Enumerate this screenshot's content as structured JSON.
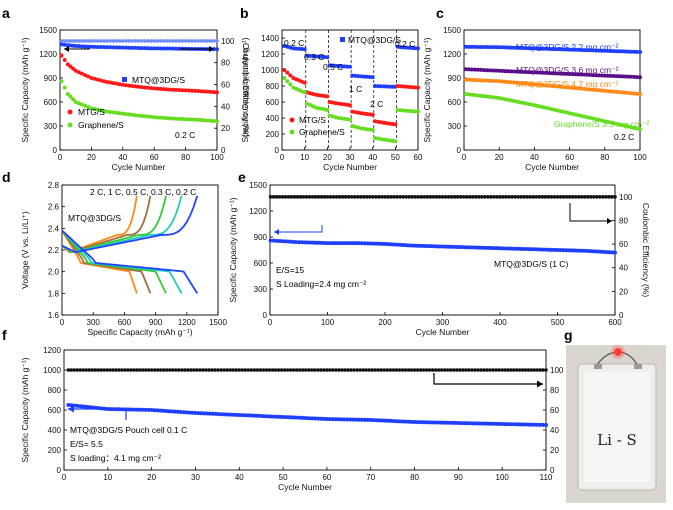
{
  "figure": {
    "panels": [
      {
        "id": "a",
        "label": "a"
      },
      {
        "id": "b",
        "label": "b"
      },
      {
        "id": "c",
        "label": "c"
      },
      {
        "id": "d",
        "label": "d"
      },
      {
        "id": "e",
        "label": "e"
      },
      {
        "id": "f",
        "label": "f"
      },
      {
        "id": "g",
        "label": "g"
      }
    ]
  },
  "photo": {
    "label": "g",
    "handwriting": "Li - S"
  },
  "chart_data": [
    {
      "panel": "a",
      "type": "scatter",
      "xlabel": "Cycle Number",
      "ylabel": "Specific Capacity (mAh g⁻¹)",
      "y2label": "Coulombic Efficiency (%)",
      "xlim": [
        0,
        100
      ],
      "ylim": [
        0,
        1500
      ],
      "y2lim": [
        0,
        110
      ],
      "xticks": [
        "0",
        "20",
        "40",
        "60",
        "80",
        "100"
      ],
      "yticks": [
        "0",
        "300",
        "600",
        "900",
        "1200",
        "1500"
      ],
      "y2ticks": [
        "0",
        "20",
        "40",
        "60",
        "80",
        "100"
      ],
      "annotations": [
        "0.2 C"
      ],
      "legend": [
        "MTQ@3DG/S",
        "MTG/S",
        "Graphene/S"
      ],
      "series": [
        {
          "name": "MTQ@3DG/S",
          "color": "#1f3fff",
          "x": [
            1,
            5,
            10,
            20,
            30,
            40,
            50,
            60,
            70,
            80,
            90,
            100
          ],
          "y": [
            1320,
            1310,
            1300,
            1290,
            1285,
            1280,
            1275,
            1270,
            1268,
            1265,
            1262,
            1260
          ]
        },
        {
          "name": "MTG/S",
          "color": "#ff1a1a",
          "x": [
            1,
            5,
            10,
            20,
            30,
            40,
            50,
            60,
            70,
            80,
            90,
            100
          ],
          "y": [
            1180,
            1070,
            990,
            900,
            850,
            815,
            790,
            770,
            755,
            745,
            735,
            720
          ]
        },
        {
          "name": "Graphene/S",
          "color": "#66dd22",
          "x": [
            1,
            5,
            10,
            20,
            30,
            40,
            50,
            60,
            70,
            80,
            90,
            100
          ],
          "y": [
            860,
            700,
            600,
            520,
            480,
            455,
            430,
            410,
            395,
            385,
            375,
            360
          ]
        },
        {
          "name": "",
          "color": "#6f8cff",
          "axis": "y2",
          "x": [
            1,
            20,
            40,
            60,
            80,
            100
          ],
          "y": [
            100,
            100,
            100,
            100,
            100,
            100
          ]
        }
      ]
    },
    {
      "panel": "b",
      "type": "scatter",
      "xlabel": "Cycle Number",
      "ylabel": "Specific Capacity (mAh g⁻¹)",
      "xlim": [
        0,
        60
      ],
      "ylim": [
        0,
        1500
      ],
      "xticks": [
        "0",
        "10",
        "20",
        "30",
        "40",
        "50",
        "60"
      ],
      "yticks": [
        "0",
        "200",
        "400",
        "600",
        "800",
        "1000",
        "1200",
        "1400"
      ],
      "rate_labels": [
        "0.2 C",
        "0.3 C",
        "0.5 C",
        "1 C",
        "2 C",
        "0.2 C"
      ],
      "legend": [
        "MTQ@3DG/S",
        "MTG/S",
        "Graphene/S"
      ],
      "series": [
        {
          "name": "MTQ@3DG/S",
          "color": "#1f3fff",
          "x": [
            1,
            5,
            10,
            11,
            15,
            20,
            21,
            25,
            30,
            31,
            35,
            40,
            41,
            45,
            50,
            51,
            55,
            60
          ],
          "y": [
            1300,
            1270,
            1260,
            1180,
            1170,
            1160,
            1060,
            1050,
            1040,
            930,
            920,
            910,
            800,
            795,
            790,
            1290,
            1280,
            1270
          ]
        },
        {
          "name": "MTG/S",
          "color": "#ff1a1a",
          "x": [
            1,
            5,
            10,
            11,
            15,
            20,
            21,
            25,
            30,
            31,
            35,
            40,
            41,
            45,
            50,
            51,
            55,
            60
          ],
          "y": [
            1000,
            900,
            840,
            720,
            690,
            670,
            600,
            580,
            560,
            480,
            460,
            440,
            360,
            340,
            320,
            800,
            790,
            780
          ]
        },
        {
          "name": "Graphene/S",
          "color": "#66dd22",
          "x": [
            1,
            5,
            10,
            11,
            15,
            20,
            21,
            25,
            30,
            31,
            35,
            40,
            41,
            45,
            50,
            51,
            55,
            60
          ],
          "y": [
            900,
            780,
            720,
            580,
            530,
            500,
            430,
            400,
            380,
            300,
            270,
            250,
            150,
            130,
            110,
            500,
            490,
            480
          ]
        }
      ]
    },
    {
      "panel": "c",
      "type": "scatter",
      "xlabel": "Cycle Number",
      "ylabel": "Specific Capacity (mAh g⁻¹)",
      "xlim": [
        0,
        100
      ],
      "ylim": [
        0,
        1500
      ],
      "xticks": [
        "0",
        "20",
        "40",
        "60",
        "80",
        "100"
      ],
      "yticks": [
        "0",
        "300",
        "600",
        "900",
        "1200",
        "1500"
      ],
      "annotations": [
        "0.2 C"
      ],
      "series": [
        {
          "name": "MTQ@3DG/S  2.2 mg cm⁻²",
          "color": "#1f3fff",
          "x": [
            1,
            20,
            40,
            60,
            80,
            100
          ],
          "y": [
            1290,
            1285,
            1270,
            1255,
            1240,
            1225
          ]
        },
        {
          "name": "MTQ@3DG/S  3.6 mg cm⁻²",
          "color": "#5a0f8a",
          "x": [
            1,
            20,
            40,
            60,
            80,
            100
          ],
          "y": [
            1010,
            990,
            970,
            950,
            930,
            910
          ]
        },
        {
          "name": "MTQ@3DG/S  4.7 mg cm⁻²",
          "color": "#ff8a1a",
          "x": [
            1,
            20,
            40,
            60,
            80,
            100
          ],
          "y": [
            880,
            860,
            820,
            780,
            740,
            700
          ]
        },
        {
          "name": "Graphene/S  3.5 mg cm⁻²",
          "color": "#66dd22",
          "x": [
            1,
            20,
            40,
            60,
            80,
            100
          ],
          "y": [
            700,
            650,
            560,
            460,
            360,
            260
          ]
        }
      ]
    },
    {
      "panel": "d",
      "type": "line",
      "xlabel": "Specific Capacity (mAh g⁻¹)",
      "ylabel": "Voltage (V vs. Li/Li⁺)",
      "xlim": [
        0,
        1500
      ],
      "ylim": [
        1.6,
        2.8
      ],
      "xticks": [
        "0",
        "300",
        "600",
        "900",
        "1200",
        "1500"
      ],
      "yticks": [
        "1.6",
        "1.8",
        "2.0",
        "2.2",
        "2.4",
        "2.6",
        "2.8"
      ],
      "rate_labels": "2 C,  1 C,  0.5 C,  0.3 C,  0.2 C",
      "annotations": [
        "MTQ@3DG/S"
      ],
      "series": [
        {
          "name": "2 C",
          "color": "#ff8a1a",
          "capacity": 720
        },
        {
          "name": "1 C",
          "color": "#a07040",
          "capacity": 850
        },
        {
          "name": "0.5 C",
          "color": "#33cc33",
          "capacity": 1000
        },
        {
          "name": "0.3 C",
          "color": "#22ccbb",
          "capacity": 1150
        },
        {
          "name": "0.2 C",
          "color": "#2244ff",
          "capacity": 1300
        }
      ]
    },
    {
      "panel": "e",
      "type": "scatter",
      "xlabel": "Cycle Number",
      "ylabel": "Specific Capacity (mAh g⁻¹)",
      "y2label": "Coulombic Efficiency (%)",
      "xlim": [
        0,
        600
      ],
      "ylim": [
        0,
        1500
      ],
      "y2lim": [
        0,
        110
      ],
      "xticks": [
        "0",
        "100",
        "200",
        "300",
        "400",
        "500",
        "600"
      ],
      "yticks": [
        "0",
        "300",
        "600",
        "900",
        "1200",
        "1500"
      ],
      "y2ticks": [
        "0",
        "20",
        "40",
        "60",
        "80",
        "100"
      ],
      "annotations": [
        "E/S=15",
        "S Loading=2.4 mg cm⁻²",
        "MTQ@3DG/S (1 C)"
      ],
      "series": [
        {
          "name": "MTQ@3DG/S (1 C)",
          "color": "#1f3fff",
          "x": [
            1,
            50,
            100,
            150,
            200,
            250,
            300,
            350,
            400,
            450,
            500,
            550,
            600
          ],
          "y": [
            860,
            840,
            830,
            830,
            820,
            800,
            790,
            780,
            770,
            760,
            750,
            740,
            720
          ]
        },
        {
          "name": "",
          "color": "#111111",
          "axis": "y2",
          "x": [
            1,
            100,
            200,
            300,
            400,
            500,
            600
          ],
          "y": [
            100,
            100,
            100,
            100,
            100,
            100,
            100
          ]
        }
      ]
    },
    {
      "panel": "f",
      "type": "scatter",
      "xlabel": "Cycle Number",
      "ylabel": "Specific Capacity (mAh g⁻¹)",
      "y2label": "Coulombic Efficiency (%)",
      "xlim": [
        0,
        110
      ],
      "ylim": [
        0,
        1200
      ],
      "y2lim": [
        0,
        120
      ],
      "xticks": [
        "0",
        "10",
        "20",
        "30",
        "40",
        "50",
        "60",
        "70",
        "80",
        "90",
        "100",
        "110"
      ],
      "yticks": [
        "0",
        "200",
        "400",
        "600",
        "800",
        "1000",
        "1200"
      ],
      "y2ticks": [
        "0",
        "20",
        "40",
        "60",
        "80",
        "100"
      ],
      "annotations": [
        "MTQ@3DG/S Pouch cell 0.1 C",
        "E/S= 5.5",
        "S loading：4.1 mg cm⁻²"
      ],
      "series": [
        {
          "name": "MTQ@3DG/S Pouch cell 0.1 C",
          "color": "#1f3fff",
          "x": [
            1,
            10,
            20,
            30,
            40,
            50,
            60,
            70,
            80,
            90,
            100,
            110
          ],
          "y": [
            650,
            610,
            600,
            570,
            550,
            530,
            510,
            500,
            480,
            470,
            460,
            450
          ]
        },
        {
          "name": "",
          "color": "#111111",
          "axis": "y2",
          "x": [
            1,
            20,
            40,
            60,
            80,
            100,
            110
          ],
          "y": [
            100,
            100,
            100,
            100,
            100,
            100,
            100
          ]
        }
      ]
    }
  ]
}
